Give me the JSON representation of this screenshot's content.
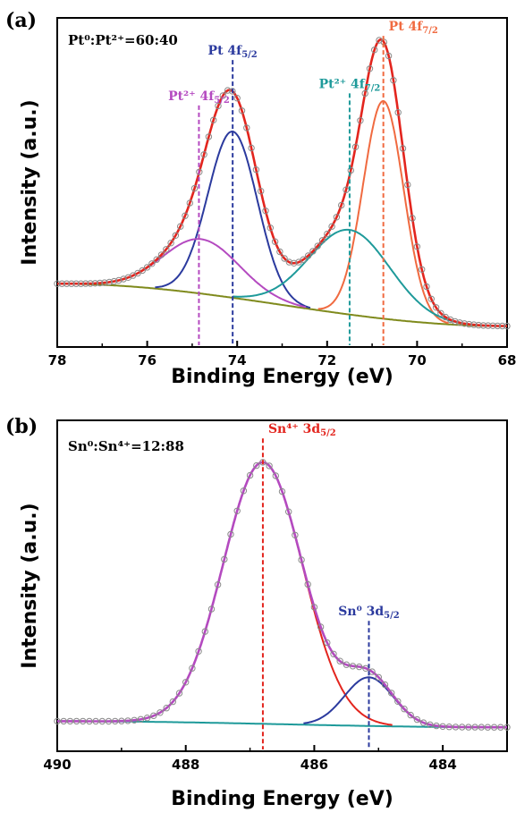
{
  "chart_data": [
    {
      "panel": "(a)",
      "type": "line",
      "ratio_text": "Pt⁰:Pt²⁺=60:40",
      "xlabel": "Binding Energy (eV)",
      "ylabel": "Intensity (a.u.)",
      "xlim": [
        78,
        68
      ],
      "x_reversed": true,
      "ylim": [
        0,
        1.0
      ],
      "xticks": [
        78,
        76,
        74,
        72,
        70,
        68
      ],
      "background": {
        "x0": 78,
        "x1": 68,
        "start": 0.15,
        "end": 0.01
      },
      "peaks": [
        {
          "name": "Pt 4f5/2",
          "center": 74.1,
          "height": 0.55,
          "width": 0.55,
          "color": "#2b3a9e"
        },
        {
          "name": "Pt2+ 4f5/2",
          "center": 74.8,
          "height": 0.18,
          "width": 0.85,
          "color": "#b44ac0"
        },
        {
          "name": "Pt 4f7/2",
          "center": 70.75,
          "height": 0.72,
          "width": 0.45,
          "color": "#f06a40"
        },
        {
          "name": "Pt2+ 4f7/2",
          "center": 71.5,
          "height": 0.28,
          "width": 0.9,
          "color": "#1e9a9a"
        }
      ],
      "envelope_color": "#e3251e",
      "background_color": "#7f8a1c",
      "markers": [
        {
          "x": 74.85,
          "top": 0.74,
          "color": "#b44ac0",
          "label": "Pt²⁺ 4f",
          "sub": "5/2"
        },
        {
          "x": 74.1,
          "top": 0.89,
          "color": "#2b3a9e",
          "label": "Pt 4f",
          "sub": "5/2"
        },
        {
          "x": 71.5,
          "top": 0.78,
          "color": "#1e9a9a",
          "label": "Pt²⁺ 4f",
          "sub": "7/2"
        },
        {
          "x": 70.75,
          "top": 0.97,
          "color": "#f06a40",
          "label": "Pt 4f",
          "sub": "7/2"
        }
      ]
    },
    {
      "panel": "(b)",
      "type": "line",
      "ratio_text": "Sn⁰:Sn⁴⁺=12:88",
      "xlabel": "Binding Energy (eV)",
      "ylabel": "Intensity (a.u.)",
      "xlim": [
        490,
        483
      ],
      "x_reversed": true,
      "ylim": [
        0,
        1.0
      ],
      "xticks": [
        490,
        488,
        486,
        484
      ],
      "background": {
        "x0": 490,
        "x1": 483,
        "start": 0.04,
        "end": 0.02
      },
      "peaks": [
        {
          "name": "Sn4+ 3d5/2",
          "center": 486.8,
          "height": 0.86,
          "width": 0.62,
          "color": "#e3251e"
        },
        {
          "name": "Sn0 3d5/2",
          "center": 485.15,
          "height": 0.16,
          "width": 0.38,
          "color": "#2b3a9e"
        }
      ],
      "envelope_color": "#b44ac0",
      "background_color": "#1e9a9a",
      "markers": [
        {
          "x": 486.8,
          "top": 0.97,
          "color": "#e3251e",
          "label": "Sn⁴⁺ 3d",
          "sub": "5/2"
        },
        {
          "x": 485.15,
          "top": 0.37,
          "color": "#2b3a9e",
          "label": "Sn⁰ 3d",
          "sub": "5/2"
        }
      ]
    }
  ]
}
